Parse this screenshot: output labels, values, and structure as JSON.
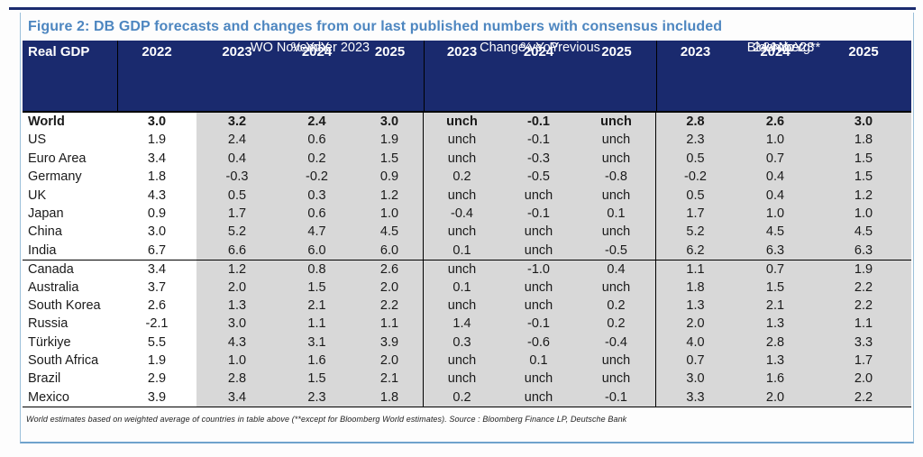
{
  "figure": {
    "title": "Figure 2: DB GDP forecasts and changes from our last published numbers with consensus included",
    "footnote": "World estimates based on weighted average of countries in table above (**except for Bloomberg World estimates). Source : Bloomberg Finance LP, Deutsche Bank"
  },
  "colors": {
    "header_navy": "#1a2a6e",
    "title_blue": "#4d86c0",
    "frame_blue": "#9cc0da",
    "body_gray": "#d8d8d8"
  },
  "table": {
    "header": {
      "corner_label": "Real GDP",
      "years": [
        "2022",
        "2023",
        "2024",
        "2025",
        "2023",
        "2024",
        "2025",
        "2023",
        "2024",
        "2025"
      ],
      "group_wo": {
        "yoy": "% YoY",
        "sub": "WO November 2023"
      },
      "group_change": {
        "yoy": "% YoY",
        "sub": "Change vs. Previous"
      },
      "group_bloomberg": {
        "yoy": "% YoY",
        "mid": "Bloomberg**",
        "sub": "24-Nov-23"
      }
    },
    "rows": [
      {
        "label": "World",
        "bold": true,
        "values": [
          "3.0",
          "3.2",
          "2.4",
          "3.0",
          "unch",
          "-0.1",
          "unch",
          "2.8",
          "2.6",
          "3.0"
        ]
      },
      {
        "label": "US",
        "values": [
          "1.9",
          "2.4",
          "0.6",
          "1.9",
          "unch",
          "-0.1",
          "unch",
          "2.3",
          "1.0",
          "1.8"
        ]
      },
      {
        "label": "Euro Area",
        "values": [
          "3.4",
          "0.4",
          "0.2",
          "1.5",
          "unch",
          "-0.3",
          "unch",
          "0.5",
          "0.7",
          "1.5"
        ]
      },
      {
        "label": "Germany",
        "values": [
          "1.8",
          "-0.3",
          "-0.2",
          "0.9",
          "0.2",
          "-0.5",
          "-0.8",
          "-0.2",
          "0.4",
          "1.5"
        ]
      },
      {
        "label": "UK",
        "values": [
          "4.3",
          "0.5",
          "0.3",
          "1.2",
          "unch",
          "unch",
          "unch",
          "0.5",
          "0.4",
          "1.2"
        ]
      },
      {
        "label": "Japan",
        "values": [
          "0.9",
          "1.7",
          "0.6",
          "1.0",
          "-0.4",
          "-0.1",
          "0.1",
          "1.7",
          "1.0",
          "1.0"
        ]
      },
      {
        "label": "China",
        "values": [
          "3.0",
          "5.2",
          "4.7",
          "4.5",
          "unch",
          "unch",
          "unch",
          "5.2",
          "4.5",
          "4.5"
        ]
      },
      {
        "label": "India",
        "values": [
          "6.7",
          "6.6",
          "6.0",
          "6.0",
          "0.1",
          "unch",
          "-0.5",
          "6.2",
          "6.3",
          "6.3"
        ]
      },
      {
        "label": "Canada",
        "group_start": true,
        "values": [
          "3.4",
          "1.2",
          "0.8",
          "2.6",
          "unch",
          "-1.0",
          "0.4",
          "1.1",
          "0.7",
          "1.9"
        ]
      },
      {
        "label": "Australia",
        "values": [
          "3.7",
          "2.0",
          "1.5",
          "2.0",
          "0.1",
          "unch",
          "unch",
          "1.8",
          "1.5",
          "2.2"
        ]
      },
      {
        "label": "South Korea",
        "values": [
          "2.6",
          "1.3",
          "2.1",
          "2.2",
          "unch",
          "unch",
          "0.2",
          "1.3",
          "2.1",
          "2.2"
        ]
      },
      {
        "label": "Russia",
        "values": [
          "-2.1",
          "3.0",
          "1.1",
          "1.1",
          "1.4",
          "-0.1",
          "0.2",
          "2.0",
          "1.3",
          "1.1"
        ]
      },
      {
        "label": "Türkiye",
        "values": [
          "5.5",
          "4.3",
          "3.1",
          "3.9",
          "0.3",
          "-0.6",
          "-0.4",
          "4.0",
          "2.8",
          "3.3"
        ]
      },
      {
        "label": "South Africa",
        "values": [
          "1.9",
          "1.0",
          "1.6",
          "2.0",
          "unch",
          "0.1",
          "unch",
          "0.7",
          "1.3",
          "1.7"
        ]
      },
      {
        "label": "Brazil",
        "values": [
          "2.9",
          "2.8",
          "1.5",
          "2.1",
          "unch",
          "unch",
          "unch",
          "3.0",
          "1.6",
          "2.0"
        ]
      },
      {
        "label": "Mexico",
        "values": [
          "3.9",
          "3.4",
          "2.3",
          "1.8",
          "0.2",
          "unch",
          "-0.1",
          "3.3",
          "2.0",
          "2.2"
        ]
      }
    ]
  }
}
